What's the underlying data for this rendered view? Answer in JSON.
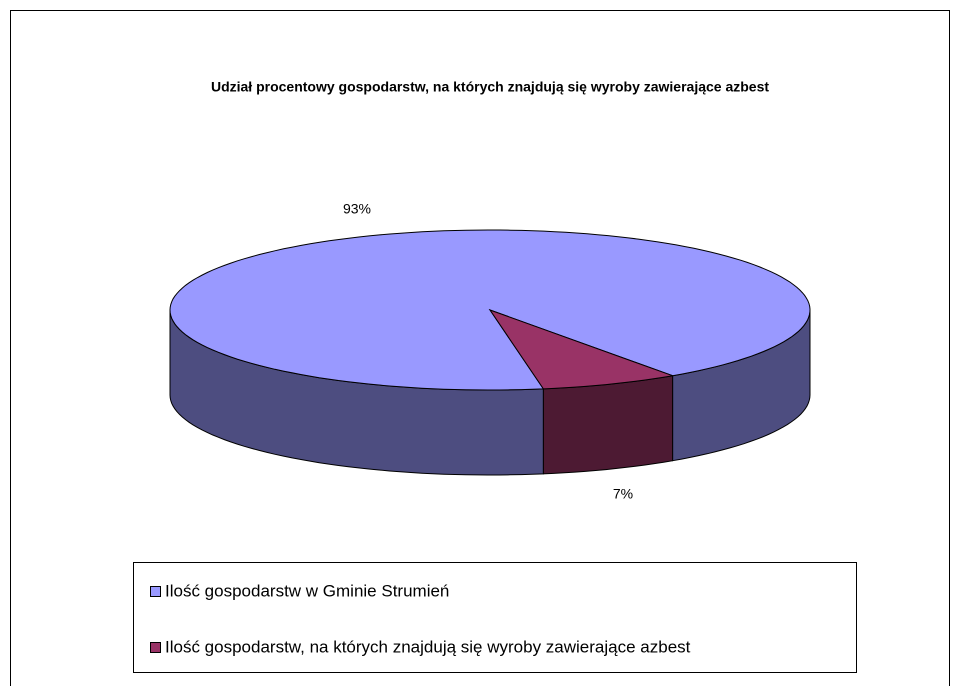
{
  "chart_data": {
    "type": "pie3d",
    "title": "Udział procentowy gospodarstw, na których znajdują się wyroby zawierające azbest",
    "categories": [
      "Ilość gospodarstw w Gminie Strumień",
      "Ilość gospodarstw, na których znajdują się wyroby zawierające azbest"
    ],
    "values": [
      93,
      7
    ],
    "value_labels": [
      "93%",
      "7%"
    ],
    "colors": [
      "#9999ff",
      "#993366"
    ],
    "legend": "bottom"
  }
}
